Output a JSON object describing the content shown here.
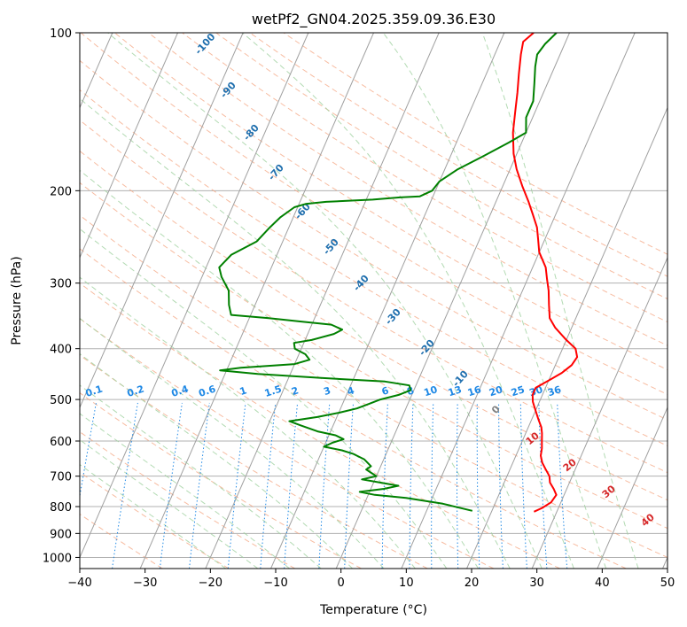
{
  "chart_data": {
    "type": "line",
    "title": "wetPf2_GN04.2025.359.09.36.E30",
    "xlabel": "Temperature (°C)",
    "ylabel": "Pressure (hPa)",
    "xlim": [
      -40,
      50
    ],
    "ylim": [
      1050,
      100
    ],
    "y_scale": "log",
    "x_ticks": [
      -40,
      -30,
      -20,
      -10,
      0,
      10,
      20,
      30,
      40,
      50
    ],
    "y_ticks": [
      100,
      200,
      300,
      400,
      500,
      600,
      700,
      800,
      900,
      1000
    ],
    "grid": true,
    "series": [
      {
        "color": "#ff0000",
        "points": [
          [
            26.5,
            818
          ],
          [
            27.5,
            805
          ],
          [
            28.5,
            785
          ],
          [
            28.8,
            760
          ],
          [
            28,
            740
          ],
          [
            27,
            720
          ],
          [
            26.5,
            700
          ],
          [
            25.5,
            680
          ],
          [
            24.5,
            660
          ],
          [
            23.8,
            640
          ],
          [
            23.5,
            620
          ],
          [
            23,
            600
          ],
          [
            22.5,
            580
          ],
          [
            22,
            565
          ],
          [
            21,
            545
          ],
          [
            20,
            525
          ],
          [
            19,
            505
          ],
          [
            18.5,
            490
          ],
          [
            18.5,
            475
          ],
          [
            20,
            460
          ],
          [
            21.5,
            445
          ],
          [
            22.5,
            430
          ],
          [
            22.8,
            415
          ],
          [
            22,
            400
          ],
          [
            20,
            385
          ],
          [
            17.5,
            365
          ],
          [
            16,
            350
          ],
          [
            15,
            330
          ],
          [
            14,
            310
          ],
          [
            13,
            295
          ],
          [
            12,
            280
          ],
          [
            10,
            262
          ],
          [
            9,
            248
          ],
          [
            8,
            235
          ],
          [
            6.5,
            222
          ],
          [
            5,
            210
          ],
          [
            3,
            196
          ],
          [
            1,
            182
          ],
          [
            -0.5,
            170
          ],
          [
            -2,
            155
          ],
          [
            -3,
            142
          ],
          [
            -4,
            130
          ],
          [
            -5,
            120
          ],
          [
            -6,
            110
          ],
          [
            -6.5,
            104
          ],
          [
            -5.5,
            100
          ]
        ]
      },
      {
        "color": "#008000",
        "points": [
          [
            17,
            815
          ],
          [
            12,
            790
          ],
          [
            6,
            770
          ],
          [
            1,
            760
          ],
          [
            -1.5,
            750
          ],
          [
            2,
            740
          ],
          [
            4,
            730
          ],
          [
            1,
            720
          ],
          [
            -2,
            710
          ],
          [
            0,
            700
          ],
          [
            -1,
            690
          ],
          [
            -2,
            680
          ],
          [
            -1.5,
            670
          ],
          [
            -3,
            650
          ],
          [
            -5,
            635
          ],
          [
            -7,
            625
          ],
          [
            -10,
            615
          ],
          [
            -9,
            605
          ],
          [
            -7.5,
            595
          ],
          [
            -9,
            585
          ],
          [
            -12,
            575
          ],
          [
            -15,
            560
          ],
          [
            -17,
            550
          ],
          [
            -13,
            540
          ],
          [
            -10,
            530
          ],
          [
            -7.5,
            520
          ],
          [
            -6,
            510
          ],
          [
            -4.5,
            500
          ],
          [
            -2,
            490
          ],
          [
            -0.5,
            480
          ],
          [
            -1,
            470
          ],
          [
            -5,
            462
          ],
          [
            -15,
            455
          ],
          [
            -25,
            447
          ],
          [
            -31,
            440
          ],
          [
            -28,
            435
          ],
          [
            -20,
            428
          ],
          [
            -18,
            420
          ],
          [
            -19,
            410
          ],
          [
            -21,
            400
          ],
          [
            -21.5,
            390
          ],
          [
            -19,
            385
          ],
          [
            -16,
            375
          ],
          [
            -15,
            368
          ],
          [
            -17,
            360
          ],
          [
            -22,
            355
          ],
          [
            -27,
            350
          ],
          [
            -33,
            345
          ],
          [
            -34,
            330
          ],
          [
            -35,
            310
          ],
          [
            -37,
            292
          ],
          [
            -38,
            280
          ],
          [
            -37,
            265
          ],
          [
            -34,
            250
          ],
          [
            -33,
            236
          ],
          [
            -32,
            225
          ],
          [
            -30.5,
            215
          ],
          [
            -29,
            212
          ],
          [
            -26,
            210
          ],
          [
            -19,
            208
          ],
          [
            -15,
            206
          ],
          [
            -12,
            205
          ],
          [
            -10.5,
            200
          ],
          [
            -10,
            192
          ],
          [
            -8,
            182
          ],
          [
            -5,
            172
          ],
          [
            -2,
            162
          ],
          [
            0,
            155
          ],
          [
            -1,
            145
          ],
          [
            -1,
            135
          ],
          [
            -2,
            125
          ],
          [
            -3,
            116
          ],
          [
            -3.5,
            110
          ],
          [
            -3,
            105
          ],
          [
            -2,
            100
          ]
        ]
      }
    ],
    "mixing_ratio_labels": [
      "0.1",
      "0.2",
      "0.4",
      "0.6",
      "1",
      "1.5",
      "2",
      "3",
      "4",
      "6",
      "8",
      "10",
      "13",
      "16",
      "20",
      "25",
      "30",
      "36"
    ],
    "dry_adiabat_labels": [
      "-100",
      "-90",
      "-80",
      "-70",
      "-60",
      "-50",
      "-40",
      "-30",
      "-20",
      "-10",
      "0"
    ],
    "moist_adiabat_labels": [
      "10",
      "20",
      "30",
      "40"
    ],
    "colors": {
      "temperature": "#ff0000",
      "dewpoint": "#008000",
      "isotherm": "#a0a0a0",
      "dry_adiabat": "#f4a582",
      "moist_adiabat": "#9fd19f",
      "mixing_ratio": "#1e88e5",
      "dry_label": "#1f6fae",
      "moist_label": "#d62728",
      "zero_label": "#808080"
    }
  }
}
